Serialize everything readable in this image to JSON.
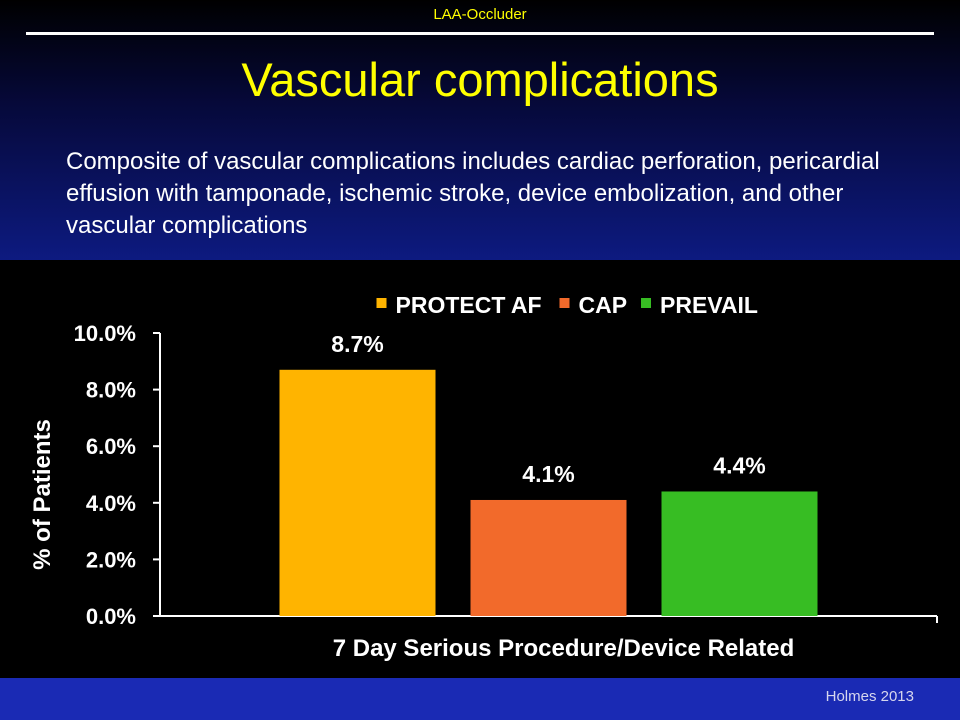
{
  "header": {
    "label": "LAA-Occluder"
  },
  "slide": {
    "title": "Vascular complications",
    "body": "Composite of vascular complications includes cardiac perforation, pericardial effusion with tamponade, ischemic stroke, device embolization, and other vascular complications"
  },
  "footer": {
    "citation": "Holmes 2013"
  },
  "colors": {
    "PROTECT AF": "#ffb400",
    "CAP": "#f26a2b",
    "PREVAIL": "#37bd23"
  },
  "chart_data": {
    "type": "bar",
    "categories": [
      "7 Day Serious Procedure/Device Related"
    ],
    "series": [
      {
        "name": "PROTECT AF",
        "values": [
          8.7
        ],
        "label": "8.7%",
        "color": "#ffb400"
      },
      {
        "name": "CAP",
        "values": [
          4.1
        ],
        "label": "4.1%",
        "color": "#f26a2b"
      },
      {
        "name": "PREVAIL",
        "values": [
          4.4
        ],
        "label": "4.4%",
        "color": "#37bd23"
      }
    ],
    "xlabel": "7 Day Serious Procedure/Device Related",
    "ylabel": "% of Patients",
    "ylim": [
      0,
      10
    ],
    "yticks": [
      0,
      2,
      4,
      6,
      8,
      10
    ],
    "ytick_labels": [
      "0.0%",
      "2.0%",
      "4.0%",
      "6.0%",
      "8.0%",
      "10.0%"
    ],
    "legend_position": "top",
    "grid": false
  }
}
